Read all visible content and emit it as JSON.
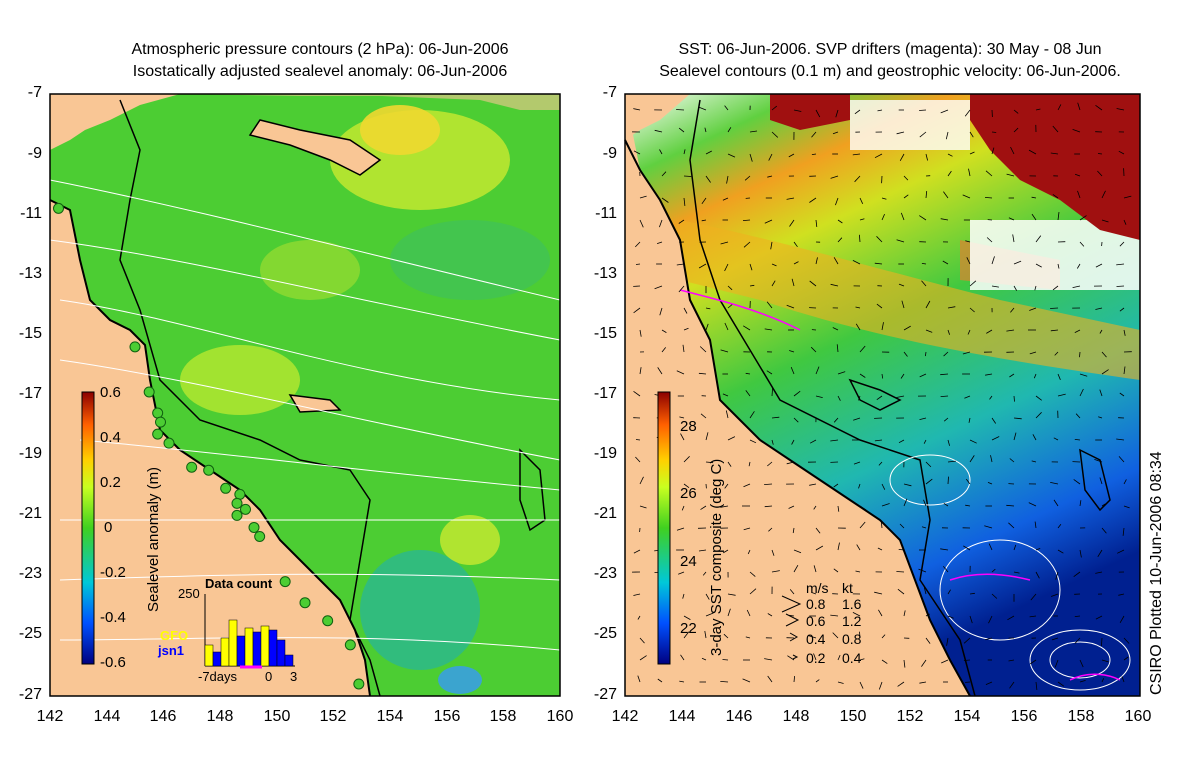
{
  "left_panel": {
    "title_line1": "Atmospheric pressure contours (2 hPa): 06-Jun-2006",
    "title_line2": "Isostatically adjusted sealevel anomaly: 06-Jun-2006",
    "colorbar_label": "Sealevel anomaly (m)",
    "colorbar_ticks": [
      "0.6",
      "0.4",
      "0.2",
      "0",
      "-0.2",
      "-0.4",
      "-0.6"
    ],
    "inset": {
      "title": "Data count",
      "ymax_label": "250",
      "x_labels": [
        "-7days",
        "0",
        "3"
      ],
      "legend_gfo": "GFO",
      "legend_jsn1": "jsn1",
      "gfo_color": "#ffff00",
      "jsn1_color": "#0000ff"
    }
  },
  "right_panel": {
    "title_line1": "SST: 06-Jun-2006. SVP drifters (magenta): 30 May - 08 Jun",
    "title_line2": "Sealevel contours (0.1 m) and geostrophic velocity: 06-Jun-2006.",
    "colorbar_label": "3-day SST composite (deg C)",
    "colorbar_ticks": [
      "28",
      "26",
      "24",
      "22"
    ],
    "velocity_key": {
      "header_ms": "m/s",
      "header_kt": "kt",
      "rows": [
        {
          "ms": "0.8",
          "kt": "1.6"
        },
        {
          "ms": "0.6",
          "kt": "1.2"
        },
        {
          "ms": "0.4",
          "kt": "0.8"
        },
        {
          "ms": "0.2",
          "kt": "0.4"
        }
      ]
    }
  },
  "axes": {
    "lat_ticks": [
      "-7",
      "-9",
      "-11",
      "-13",
      "-15",
      "-17",
      "-19",
      "-21",
      "-23",
      "-25",
      "-27"
    ],
    "lon_ticks": [
      "142",
      "144",
      "146",
      "148",
      "150",
      "152",
      "154",
      "156",
      "158",
      "160"
    ]
  },
  "credit": "CSIRO Plotted 10-Jun-2006 08:34",
  "colors": {
    "land": "#f9c695",
    "sea_green": "#4ccd33",
    "coastline": "#000000"
  },
  "altimeter_points": [
    {
      "lon": 142.3,
      "lat": -10.8
    },
    {
      "lon": 145.0,
      "lat": -15.4
    },
    {
      "lon": 145.5,
      "lat": -16.9
    },
    {
      "lon": 145.8,
      "lat": -17.6
    },
    {
      "lon": 145.9,
      "lat": -17.9
    },
    {
      "lon": 145.8,
      "lat": -18.3
    },
    {
      "lon": 146.2,
      "lat": -18.6
    },
    {
      "lon": 147.0,
      "lat": -19.4
    },
    {
      "lon": 147.6,
      "lat": -19.5
    },
    {
      "lon": 148.2,
      "lat": -20.1
    },
    {
      "lon": 148.7,
      "lat": -20.3
    },
    {
      "lon": 148.6,
      "lat": -20.6
    },
    {
      "lon": 148.9,
      "lat": -20.8
    },
    {
      "lon": 148.6,
      "lat": -21.0
    },
    {
      "lon": 149.2,
      "lat": -21.4
    },
    {
      "lon": 149.4,
      "lat": -21.7
    },
    {
      "lon": 150.3,
      "lat": -23.2
    },
    {
      "lon": 151.0,
      "lat": -23.9
    },
    {
      "lon": 151.8,
      "lat": -24.5
    },
    {
      "lon": 152.6,
      "lat": -25.3
    },
    {
      "lon": 152.9,
      "lat": -26.6
    }
  ]
}
